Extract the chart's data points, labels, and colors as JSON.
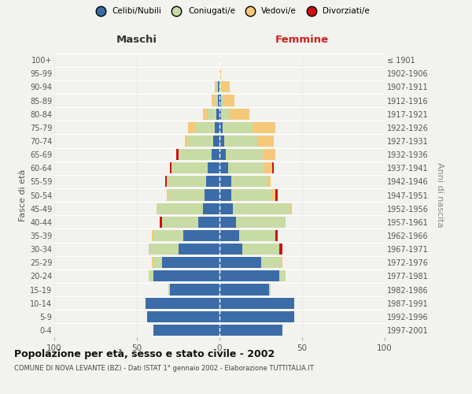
{
  "age_groups_bottom_to_top": [
    "0-4",
    "5-9",
    "10-14",
    "15-19",
    "20-24",
    "25-29",
    "30-34",
    "35-39",
    "40-44",
    "45-49",
    "50-54",
    "55-59",
    "60-64",
    "65-69",
    "70-74",
    "75-79",
    "80-84",
    "85-89",
    "90-94",
    "95-99",
    "100+"
  ],
  "birth_years_bottom_to_top": [
    "1997-2001",
    "1992-1996",
    "1987-1991",
    "1982-1986",
    "1977-1981",
    "1972-1976",
    "1967-1971",
    "1962-1966",
    "1957-1961",
    "1952-1956",
    "1947-1951",
    "1942-1946",
    "1937-1941",
    "1932-1936",
    "1927-1931",
    "1922-1926",
    "1917-1921",
    "1912-1916",
    "1907-1911",
    "1902-1906",
    "≤ 1901"
  ],
  "colors": {
    "celibi": "#3c6ca8",
    "coniugati": "#c8dba4",
    "vedovi": "#f5c97a",
    "divorziati": "#cc1111"
  },
  "maschi": {
    "celibi": [
      40,
      44,
      45,
      30,
      40,
      35,
      25,
      22,
      13,
      10,
      9,
      8,
      7,
      5,
      4,
      3,
      2,
      1,
      1,
      0,
      0
    ],
    "coniugati": [
      0,
      0,
      0,
      1,
      3,
      5,
      18,
      18,
      22,
      28,
      22,
      24,
      22,
      20,
      15,
      12,
      5,
      2,
      1,
      0,
      0
    ],
    "vedovi": [
      0,
      0,
      0,
      0,
      0,
      1,
      0,
      1,
      0,
      0,
      1,
      0,
      0,
      0,
      2,
      4,
      3,
      2,
      1,
      0,
      0
    ],
    "divorziati": [
      0,
      0,
      0,
      0,
      0,
      0,
      0,
      0,
      1,
      0,
      0,
      1,
      1,
      1,
      0,
      0,
      0,
      0,
      0,
      0,
      0
    ]
  },
  "femmine": {
    "celibi": [
      38,
      45,
      45,
      30,
      36,
      25,
      14,
      12,
      10,
      8,
      7,
      7,
      5,
      4,
      3,
      2,
      1,
      1,
      0,
      0,
      0
    ],
    "coniugati": [
      0,
      0,
      0,
      1,
      4,
      12,
      22,
      22,
      30,
      35,
      25,
      22,
      22,
      22,
      20,
      18,
      5,
      2,
      1,
      0,
      0
    ],
    "vedovi": [
      0,
      0,
      0,
      0,
      0,
      1,
      0,
      0,
      0,
      1,
      2,
      2,
      5,
      8,
      10,
      14,
      12,
      6,
      5,
      1,
      0
    ],
    "divorziati": [
      0,
      0,
      0,
      0,
      0,
      0,
      2,
      1,
      0,
      0,
      1,
      0,
      1,
      0,
      0,
      0,
      0,
      0,
      0,
      0,
      0
    ]
  },
  "title": "Popolazione per età, sesso e stato civile - 2002",
  "subtitle": "COMUNE DI NOVA LEVANTE (BZ) - Dati ISTAT 1° gennaio 2002 - Elaborazione TUTTITALIA.IT",
  "xlabel_left": "Maschi",
  "xlabel_right": "Femmine",
  "ylabel_left": "Fasce di età",
  "ylabel_right": "Anni di nascita",
  "xlim": 100,
  "bg_color": "#f2f2ee",
  "bar_height": 0.82,
  "legend_labels": [
    "Celibi/Nubili",
    "Coniugati/e",
    "Vedovi/e",
    "Divorziati/e"
  ]
}
